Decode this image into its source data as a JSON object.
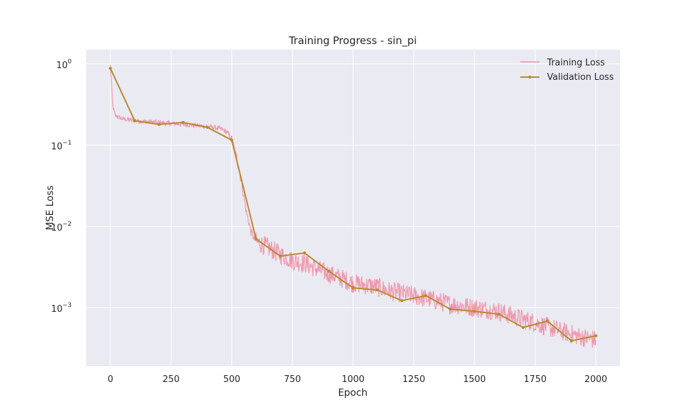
{
  "chart_data": {
    "type": "line",
    "title": "Training Progress - sin_pi",
    "xlabel": "Epoch",
    "ylabel": "MSE Loss",
    "yscale": "log",
    "xlim": [
      -100,
      2100
    ],
    "ylim": [
      0.00019,
      1.5
    ],
    "xticks": [
      0,
      250,
      500,
      750,
      1000,
      1250,
      1500,
      1750,
      2000
    ],
    "yticks": [
      {
        "value": 1,
        "base": "10",
        "exp": "0"
      },
      {
        "value": 0.1,
        "base": "10",
        "exp": "−1"
      },
      {
        "value": 0.01,
        "base": "10",
        "exp": "−2"
      },
      {
        "value": 0.001,
        "base": "10",
        "exp": "−3"
      }
    ],
    "grid": true,
    "legend": "top-right",
    "colors": {
      "background": "#eaeaf2",
      "grid": "#ffffff",
      "training": "#f08fa4",
      "validation": "#b8892f"
    },
    "series": [
      {
        "name": "Training Loss",
        "style": "line",
        "x": [
          0,
          10,
          20,
          50,
          100,
          150,
          200,
          250,
          300,
          350,
          400,
          450,
          480,
          500,
          520,
          540,
          560,
          580,
          600,
          650,
          700,
          750,
          800,
          850,
          900,
          950,
          1000,
          1050,
          1100,
          1150,
          1200,
          1250,
          1300,
          1350,
          1400,
          1450,
          1500,
          1550,
          1600,
          1650,
          1700,
          1750,
          1800,
          1850,
          1900,
          1950,
          2000
        ],
        "y": [
          0.95,
          0.3,
          0.23,
          0.21,
          0.2,
          0.195,
          0.19,
          0.185,
          0.18,
          0.175,
          0.17,
          0.16,
          0.145,
          0.12,
          0.07,
          0.035,
          0.015,
          0.0085,
          0.0065,
          0.0055,
          0.0045,
          0.0038,
          0.0035,
          0.003,
          0.0026,
          0.0023,
          0.002,
          0.0019,
          0.0018,
          0.0016,
          0.0015,
          0.0014,
          0.0013,
          0.0012,
          0.0011,
          0.00105,
          0.001,
          0.00095,
          0.0009,
          0.0008,
          0.00072,
          0.00065,
          0.00058,
          0.00052,
          0.00047,
          0.00043,
          0.0004
        ]
      },
      {
        "name": "Validation Loss",
        "style": "line-marker",
        "x": [
          0,
          100,
          200,
          300,
          400,
          500,
          600,
          700,
          800,
          900,
          1000,
          1100,
          1200,
          1300,
          1400,
          1500,
          1600,
          1700,
          1800,
          1900,
          2000
        ],
        "y": [
          0.88,
          0.2,
          0.18,
          0.19,
          0.165,
          0.115,
          0.007,
          0.0043,
          0.0047,
          0.0028,
          0.00175,
          0.00165,
          0.00122,
          0.0014,
          0.00096,
          0.0009,
          0.00083,
          0.00057,
          0.00068,
          0.00039,
          0.00045
        ]
      }
    ]
  }
}
